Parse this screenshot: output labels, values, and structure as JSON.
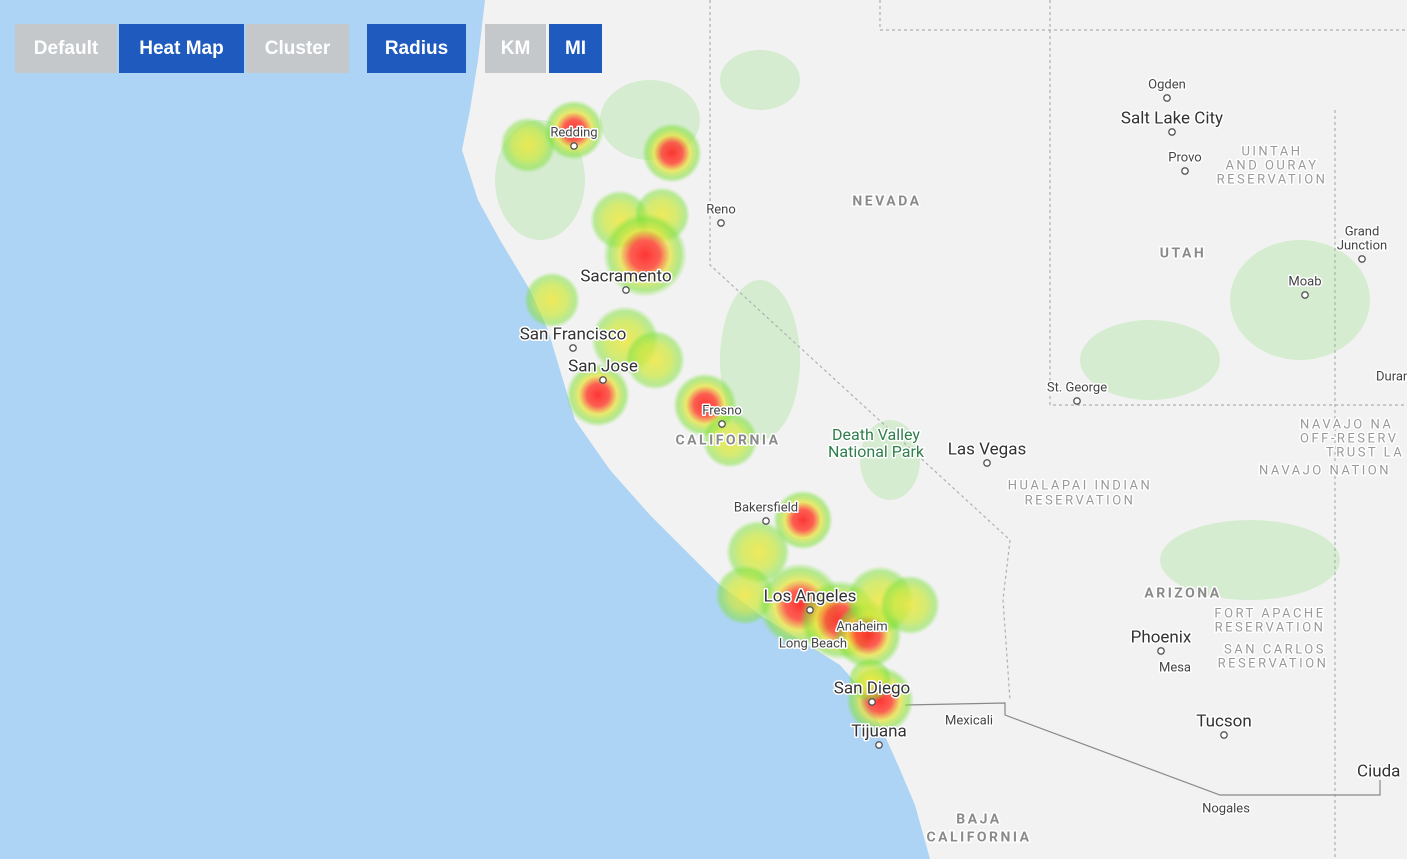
{
  "toolbar": {
    "buttons": [
      "Default",
      "Heat Map",
      "Cluster",
      "Radius",
      "KM",
      "MI"
    ]
  },
  "map": {
    "places": [
      "Ogden",
      "Salt Lake City",
      "Provo",
      "UINTAH",
      "AND OURAY",
      "RESERVATION",
      "NEVADA",
      "Reno",
      "Grand",
      "Junction",
      "UTAH",
      "Redding",
      "Sacramento",
      "Moab",
      "San Francisco",
      "San Jose",
      "Duran",
      "St. George",
      "Fresno",
      "CALIFORNIA",
      "Death Valley",
      "National Park",
      "Las Vegas",
      "NAVAJO NA",
      "OFF-RESERV",
      "TRUST LA",
      "NAVAJO NATION",
      "HUALAPAI INDIAN",
      "RESERVATION",
      "Bakersfield",
      "ARIZONA",
      "Los Angeles",
      "FORT APACHE",
      "RESERVATION",
      "Anaheim",
      "Phoenix",
      "Long Beach",
      "SAN CARLOS",
      "RESERVATION",
      "Mesa",
      "San Diego",
      "Mexicali",
      "Tucson",
      "Tijuana",
      "Ciuda",
      "Nogales",
      "BAJA",
      "CALIFORNIA"
    ]
  }
}
